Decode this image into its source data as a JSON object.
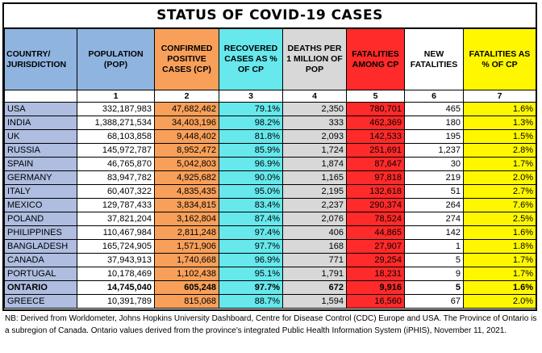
{
  "title": "STATUS OF COVID-19 CASES",
  "headers": {
    "country": "COUNTRY/ JURISDICTION",
    "population": "POPULATION (POP)",
    "confirmed": "CONFIRMED POSITIVE CASES (CP)",
    "recovered": "RECOVERED CASES AS % OF CP",
    "deaths_per_million": "DEATHS PER 1 MILLION OF POP",
    "fatalities": "FATALITIES AMONG CP",
    "new_fatalities": "NEW FATALITIES",
    "fatality_pct": "FATALITIES AS % OF CP"
  },
  "column_numbers": [
    "",
    "1",
    "2",
    "3",
    "4",
    "5",
    "6",
    "7"
  ],
  "rows": [
    {
      "country": "USA",
      "population": "332,187,983",
      "confirmed": "47,682,462",
      "recovered": "79.1%",
      "deaths_per_million": "2,350",
      "fatalities": "780,701",
      "new_fatalities": "465",
      "fatality_pct": "1.6%",
      "bold": false
    },
    {
      "country": "INDIA",
      "population": "1,388,271,534",
      "confirmed": "34,403,196",
      "recovered": "98.2%",
      "deaths_per_million": "333",
      "fatalities": "462,369",
      "new_fatalities": "180",
      "fatality_pct": "1.3%",
      "bold": false
    },
    {
      "country": "UK",
      "population": "68,103,858",
      "confirmed": "9,448,402",
      "recovered": "81.8%",
      "deaths_per_million": "2,093",
      "fatalities": "142,533",
      "new_fatalities": "195",
      "fatality_pct": "1.5%",
      "bold": false
    },
    {
      "country": "RUSSIA",
      "population": "145,972,787",
      "confirmed": "8,952,472",
      "recovered": "85.9%",
      "deaths_per_million": "1,724",
      "fatalities": "251,691",
      "new_fatalities": "1,237",
      "fatality_pct": "2.8%",
      "bold": false
    },
    {
      "country": "SPAIN",
      "population": "46,765,870",
      "confirmed": "5,042,803",
      "recovered": "96.9%",
      "deaths_per_million": "1,874",
      "fatalities": "87,647",
      "new_fatalities": "30",
      "fatality_pct": "1.7%",
      "bold": false
    },
    {
      "country": "GERMANY",
      "population": "83,947,782",
      "confirmed": "4,925,682",
      "recovered": "90.0%",
      "deaths_per_million": "1,165",
      "fatalities": "97,818",
      "new_fatalities": "219",
      "fatality_pct": "2.0%",
      "bold": false
    },
    {
      "country": "ITALY",
      "population": "60,407,322",
      "confirmed": "4,835,435",
      "recovered": "95.0%",
      "deaths_per_million": "2,195",
      "fatalities": "132,618",
      "new_fatalities": "51",
      "fatality_pct": "2.7%",
      "bold": false
    },
    {
      "country": "MEXICO",
      "population": "129,787,433",
      "confirmed": "3,834,815",
      "recovered": "83.4%",
      "deaths_per_million": "2,237",
      "fatalities": "290,374",
      "new_fatalities": "264",
      "fatality_pct": "7.6%",
      "bold": false
    },
    {
      "country": "POLAND",
      "population": "37,821,204",
      "confirmed": "3,162,804",
      "recovered": "87.4%",
      "deaths_per_million": "2,076",
      "fatalities": "78,524",
      "new_fatalities": "274",
      "fatality_pct": "2.5%",
      "bold": false
    },
    {
      "country": "PHILIPPINES",
      "population": "110,467,984",
      "confirmed": "2,811,248",
      "recovered": "97.4%",
      "deaths_per_million": "406",
      "fatalities": "44,865",
      "new_fatalities": "142",
      "fatality_pct": "1.6%",
      "bold": false
    },
    {
      "country": "BANGLADESH",
      "population": "165,724,905",
      "confirmed": "1,571,906",
      "recovered": "97.7%",
      "deaths_per_million": "168",
      "fatalities": "27,907",
      "new_fatalities": "1",
      "fatality_pct": "1.8%",
      "bold": false
    },
    {
      "country": "CANADA",
      "population": "37,943,913",
      "confirmed": "1,740,668",
      "recovered": "96.9%",
      "deaths_per_million": "771",
      "fatalities": "29,254",
      "new_fatalities": "5",
      "fatality_pct": "1.7%",
      "bold": false
    },
    {
      "country": "PORTUGAL",
      "population": "10,178,469",
      "confirmed": "1,102,438",
      "recovered": "95.1%",
      "deaths_per_million": "1,791",
      "fatalities": "18,231",
      "new_fatalities": "9",
      "fatality_pct": "1.7%",
      "bold": false
    },
    {
      "country": "ONTARIO",
      "population": "14,745,040",
      "confirmed": "605,248",
      "recovered": "97.7%",
      "deaths_per_million": "672",
      "fatalities": "9,916",
      "new_fatalities": "5",
      "fatality_pct": "1.6%",
      "bold": true
    },
    {
      "country": "GREECE",
      "population": "10,391,789",
      "confirmed": "815,068",
      "recovered": "88.7%",
      "deaths_per_million": "1,594",
      "fatalities": "16,560",
      "new_fatalities": "67",
      "fatality_pct": "2.0%",
      "bold": false
    }
  ],
  "footnote": "NB: Derived from Worldometer, Johns Hopkins University Dashboard, Centre for Disease Control (CDC) Europe and USA. The Province of Ontario is a subregion of Canada. Ontario values derived from the province's integrated Public Health Information System (iPHIS), November 11, 2021.",
  "colors": {
    "country": "#aebde0",
    "confirmed": "#f8a05a",
    "recovered": "#66e8ec",
    "deaths_per_million": "#d8d8d8",
    "fatalities": "#ff2a2a",
    "fatality_pct": "#fff700"
  }
}
